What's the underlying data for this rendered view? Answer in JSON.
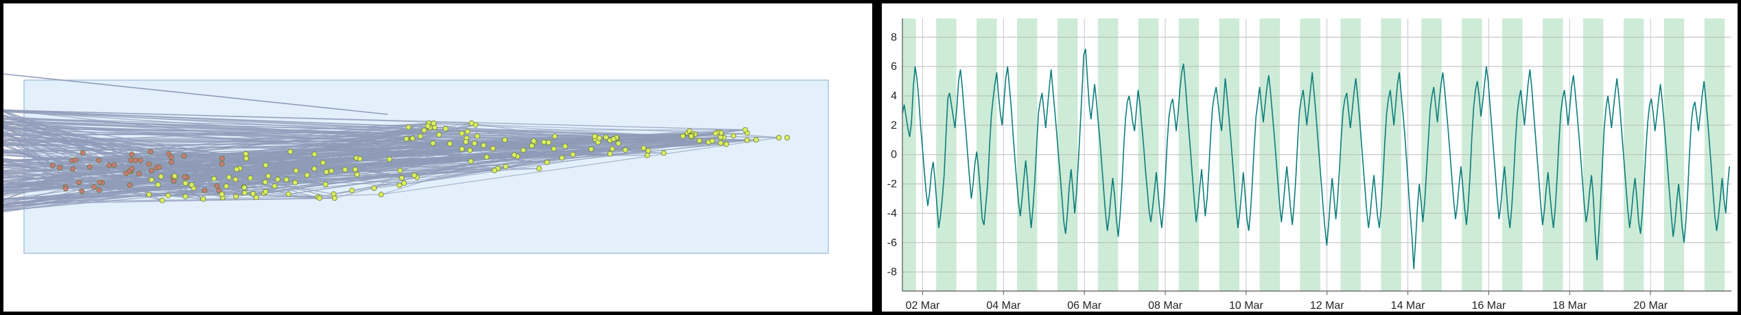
{
  "graph_view": {
    "background_color": "#ffffff",
    "region_fill": "#e3f0fc",
    "region_stroke": "#a9c4dc",
    "edge_color": "#8f9bb8",
    "node_colors": {
      "green": "#d9ef62",
      "red": "#c77a7a",
      "outline": "#6b7a33"
    }
  },
  "chart_data": {
    "type": "line",
    "title": "",
    "xlabel": "",
    "ylabel": "",
    "x_tick_labels": [
      "02 Mar",
      "04 Mar",
      "06 Mar",
      "08 Mar",
      "10 Mar",
      "12 Mar",
      "14 Mar",
      "16 Mar",
      "18 Mar",
      "20 Mar"
    ],
    "y_tick_labels": [
      "8",
      "6",
      "4",
      "2",
      "0",
      "-2",
      "-4",
      "-6",
      "-8"
    ],
    "ylim": [
      -9.3,
      8.9
    ],
    "xlim_days": [
      "01 Mar 12:00",
      "21 Mar 24:00"
    ],
    "grid": true,
    "line_color": "#0b7d7d",
    "band_color": "#cdebd6",
    "shaded_band_note": "daily shaded bands",
    "series": [
      {
        "values": [
          2.8,
          3.4,
          2.6,
          1.8,
          1.2,
          2.2,
          4.6,
          6.0,
          5.2,
          3.8,
          2.0,
          0.5,
          -1.0,
          -2.5,
          -3.5,
          -2.6,
          -1.2,
          -0.5,
          -1.8,
          -3.4,
          -5.0,
          -4.2,
          -3.0,
          -1.4,
          1.2,
          3.8,
          4.2,
          3.4,
          2.6,
          1.8,
          3.2,
          5.0,
          5.8,
          4.6,
          3.0,
          1.6,
          0.0,
          -1.6,
          -3.0,
          -2.0,
          -0.6,
          0.2,
          -1.0,
          -2.6,
          -4.4,
          -4.8,
          -3.4,
          -2.0,
          0.4,
          2.6,
          3.8,
          4.8,
          5.6,
          4.0,
          2.8,
          2.0,
          3.6,
          5.2,
          6.0,
          4.6,
          3.2,
          1.4,
          -0.2,
          -1.8,
          -3.2,
          -4.2,
          -3.0,
          -1.6,
          -0.4,
          -1.8,
          -3.6,
          -5.0,
          -3.6,
          -1.8,
          0.6,
          2.8,
          3.6,
          4.2,
          3.0,
          1.8,
          3.2,
          4.6,
          5.8,
          4.4,
          3.0,
          1.6,
          0.0,
          -1.4,
          -3.0,
          -4.6,
          -5.4,
          -4.0,
          -2.2,
          -1.0,
          -2.4,
          -4.0,
          -2.6,
          -0.6,
          1.8,
          4.2,
          6.8,
          7.2,
          5.2,
          3.4,
          2.4,
          3.6,
          4.8,
          3.6,
          2.2,
          0.8,
          -0.8,
          -2.4,
          -4.0,
          -5.2,
          -4.2,
          -2.8,
          -1.6,
          -2.8,
          -4.4,
          -5.6,
          -4.2,
          -2.2,
          0.4,
          2.4,
          3.6,
          4.0,
          3.2,
          2.2,
          1.6,
          3.0,
          4.4,
          3.4,
          2.0,
          0.6,
          -1.0,
          -2.4,
          -3.8,
          -4.6,
          -3.6,
          -2.4,
          -1.2,
          -2.6,
          -4.0,
          -5.0,
          -3.6,
          -1.6,
          0.8,
          2.6,
          3.4,
          3.8,
          2.8,
          1.6,
          2.8,
          4.4,
          5.6,
          6.2,
          4.8,
          3.2,
          1.6,
          0.0,
          -1.6,
          -3.2,
          -4.6,
          -3.6,
          -2.2,
          -1.0,
          -2.6,
          -4.2,
          -3.0,
          -1.0,
          1.4,
          3.2,
          4.0,
          4.6,
          3.6,
          2.4,
          1.6,
          3.4,
          5.2,
          4.0,
          2.6,
          1.2,
          -0.4,
          -2.0,
          -3.6,
          -5.0,
          -4.0,
          -2.6,
          -1.2,
          -2.8,
          -4.4,
          -5.2,
          -3.8,
          -1.8,
          0.6,
          2.6,
          3.6,
          4.6,
          3.4,
          2.2,
          3.4,
          4.6,
          5.4,
          4.2,
          2.8,
          1.4,
          -0.2,
          -1.8,
          -3.4,
          -4.6,
          -3.4,
          -2.0,
          -0.8,
          -2.2,
          -3.6,
          -4.8,
          -3.4,
          -1.4,
          1.0,
          3.0,
          3.8,
          4.4,
          3.2,
          2.0,
          3.2,
          4.4,
          5.6,
          4.2,
          2.8,
          1.2,
          -0.4,
          -2.0,
          -3.6,
          -5.0,
          -6.2,
          -4.8,
          -3.0,
          -1.6,
          -3.0,
          -4.4,
          -3.0,
          -1.0,
          1.2,
          3.0,
          3.8,
          4.2,
          3.0,
          1.8,
          3.0,
          4.2,
          5.2,
          4.0,
          2.6,
          1.0,
          -0.6,
          -2.2,
          -3.8,
          -5.0,
          -4.0,
          -2.6,
          -1.4,
          -2.8,
          -4.2,
          -5.0,
          -3.6,
          -1.6,
          0.8,
          2.8,
          3.8,
          4.4,
          3.2,
          2.0,
          3.4,
          4.8,
          5.6,
          4.2,
          2.8,
          1.4,
          -0.4,
          -2.2,
          -4.0,
          -5.6,
          -7.8,
          -5.8,
          -3.6,
          -2.0,
          -3.2,
          -4.6,
          -3.2,
          -1.2,
          1.0,
          3.0,
          4.0,
          4.6,
          3.4,
          2.2,
          3.6,
          4.8,
          5.6,
          4.4,
          3.0,
          1.6,
          0.0,
          -1.6,
          -3.2,
          -4.4,
          -3.4,
          -2.0,
          -0.8,
          -2.2,
          -3.6,
          -4.8,
          -3.4,
          -1.4,
          1.2,
          3.2,
          4.4,
          5.0,
          4.0,
          2.6,
          3.6,
          4.8,
          6.0,
          5.0,
          3.4,
          1.8,
          0.2,
          -1.4,
          -3.0,
          -4.4,
          -3.4,
          -2.0,
          -0.8,
          -2.4,
          -4.0,
          -5.0,
          -3.6,
          -1.6,
          0.8,
          2.8,
          3.8,
          4.4,
          3.2,
          2.0,
          3.4,
          4.8,
          5.8,
          4.6,
          3.0,
          1.4,
          -0.2,
          -1.8,
          -3.4,
          -4.8,
          -3.8,
          -2.4,
          -1.2,
          -2.6,
          -4.0,
          -5.0,
          -3.6,
          -1.6,
          0.8,
          2.8,
          3.8,
          4.4,
          3.4,
          2.0,
          3.2,
          4.6,
          5.4,
          4.2,
          2.8,
          1.4,
          -0.2,
          -1.8,
          -3.4,
          -4.6,
          -3.8,
          -2.4,
          -1.4,
          -3.0,
          -5.4,
          -7.2,
          -5.4,
          -3.2,
          -0.6,
          1.8,
          3.2,
          4.0,
          3.0,
          1.8,
          3.0,
          4.2,
          5.2,
          4.0,
          2.6,
          1.0,
          -0.6,
          -2.2,
          -3.8,
          -5.0,
          -4.0,
          -2.6,
          -1.6,
          -3.0,
          -4.6,
          -5.4,
          -4.0,
          -2.0,
          0.4,
          2.2,
          3.4,
          3.8,
          2.8,
          1.6,
          2.6,
          3.8,
          4.8,
          3.6,
          2.2,
          0.6,
          -1.0,
          -2.6,
          -4.2,
          -5.6,
          -4.6,
          -3.2,
          -2.0,
          -3.4,
          -5.0,
          -6.0,
          -4.6,
          -2.6,
          0.0,
          2.2,
          3.2,
          3.6,
          2.6,
          1.6,
          2.8,
          4.0,
          5.0,
          3.8,
          2.4,
          0.8,
          -0.8,
          -2.6,
          -4.2,
          -5.2,
          -4.2,
          -3.0,
          -1.6,
          -3.0,
          -4.0,
          -2.2,
          -0.8
        ]
      }
    ]
  }
}
